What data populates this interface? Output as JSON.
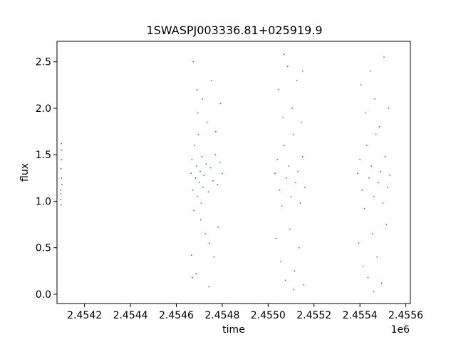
{
  "chart_data": {
    "type": "scatter",
    "title": "1SWASPJ003336.81+025919.9",
    "xlabel": "time",
    "ylabel": "flux",
    "x_offset_label": "1e6",
    "xlim": [
      2454080,
      2455620
    ],
    "ylim": [
      -0.1,
      2.72
    ],
    "grid": false,
    "legend": "none",
    "colors": {
      "points": "#1f77b4",
      "axes": "#000000",
      "background": "#ffffff"
    },
    "x_ticks": [
      {
        "value": 2454200,
        "label": "2.4542"
      },
      {
        "value": 2454400,
        "label": "2.4544"
      },
      {
        "value": 2454600,
        "label": "2.4546"
      },
      {
        "value": 2454800,
        "label": "2.4548"
      },
      {
        "value": 2455000,
        "label": "2.4550"
      },
      {
        "value": 2455200,
        "label": "2.4552"
      },
      {
        "value": 2455400,
        "label": "2.4554"
      },
      {
        "value": 2455600,
        "label": "2.4556"
      }
    ],
    "y_ticks": [
      {
        "value": 0.0,
        "label": "0.0"
      },
      {
        "value": 0.5,
        "label": "0.5"
      },
      {
        "value": 1.0,
        "label": "1.0"
      },
      {
        "value": 1.5,
        "label": "1.5"
      },
      {
        "value": 2.0,
        "label": "2.0"
      },
      {
        "value": 2.5,
        "label": "2.5"
      }
    ],
    "series": [
      {
        "x": [
          2454097,
          2454097,
          2454098,
          2454098,
          2454099,
          2454099,
          2454100,
          2454100,
          2454101,
          2454096,
          2454664,
          2454668,
          2454672,
          2454676,
          2454680,
          2454684,
          2454688,
          2454692,
          2454696,
          2454700,
          2454704,
          2454708,
          2454712,
          2454716,
          2454720,
          2454730,
          2454740,
          2454750,
          2454760,
          2454770,
          2454780,
          2454790,
          2454800,
          2454666,
          2454674,
          2454686,
          2454694,
          2454706,
          2454714,
          2454726,
          2454734,
          2454744,
          2454754,
          2454764,
          2454772,
          2454782,
          2454792,
          2454670,
          2454690,
          2454742,
          2455030,
          2455040,
          2455050,
          2455060,
          2455070,
          2455080,
          2455090,
          2455100,
          2455110,
          2455120,
          2455130,
          2455140,
          2455150,
          2455160,
          2455035,
          2455045,
          2455055,
          2455065,
          2455075,
          2455085,
          2455095,
          2455105,
          2455115,
          2455125,
          2455135,
          2455145,
          2455155,
          2455070,
          2455110,
          2455150,
          2455390,
          2455400,
          2455410,
          2455420,
          2455430,
          2455440,
          2455450,
          2455460,
          2455470,
          2455480,
          2455490,
          2455500,
          2455510,
          2455520,
          2455530,
          2455395,
          2455405,
          2455415,
          2455425,
          2455435,
          2455445,
          2455455,
          2455465,
          2455475,
          2455485,
          2455495,
          2455505,
          2455515,
          2455525,
          2455460
        ],
        "y": [
          1.08,
          1.12,
          0.96,
          1.35,
          1.55,
          1.62,
          1.25,
          1.45,
          1.18,
          1.02,
          1.3,
          1.45,
          1.12,
          0.9,
          1.6,
          1.25,
          1.38,
          1.05,
          1.72,
          1.2,
          1.32,
          0.98,
          1.48,
          1.15,
          1.28,
          1.4,
          1.1,
          1.36,
          1.22,
          1.5,
          1.18,
          1.42,
          1.3,
          0.42,
          2.5,
          0.22,
          1.95,
          0.8,
          2.1,
          0.65,
          1.85,
          0.55,
          2.3,
          0.4,
          1.75,
          0.72,
          2.05,
          0.18,
          2.2,
          0.08,
          1.3,
          1.45,
          1.12,
          0.95,
          1.6,
          1.25,
          1.38,
          1.05,
          1.72,
          1.2,
          1.32,
          0.98,
          1.48,
          1.15,
          0.6,
          2.2,
          0.35,
          1.9,
          0.15,
          2.45,
          0.7,
          2.0,
          0.25,
          2.3,
          0.5,
          1.85,
          0.1,
          2.58,
          0.05,
          2.4,
          1.3,
          1.45,
          1.12,
          0.92,
          1.6,
          1.25,
          1.38,
          1.05,
          1.72,
          1.2,
          1.32,
          0.98,
          1.48,
          1.15,
          1.28,
          0.55,
          2.25,
          0.3,
          1.95,
          0.18,
          2.4,
          0.65,
          2.1,
          0.4,
          1.8,
          0.12,
          2.55,
          0.75,
          2.0,
          0.03
        ]
      }
    ]
  }
}
